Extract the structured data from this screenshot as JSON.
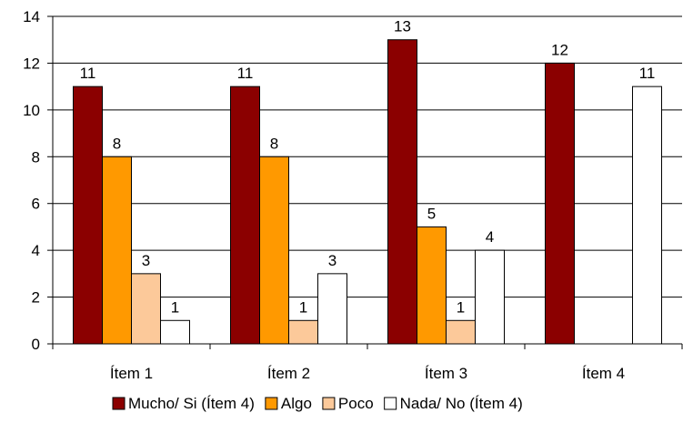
{
  "chart_data": {
    "type": "bar",
    "categories": [
      "Ítem 1",
      "Ítem 2",
      "Ítem 3",
      "Ítem 4"
    ],
    "series": [
      {
        "name": "Mucho/ Si (Ítem 4)",
        "values": [
          11,
          11,
          13,
          12
        ],
        "color": "#8b0000"
      },
      {
        "name": "Algo",
        "values": [
          8,
          8,
          5,
          null
        ],
        "color": "#ff9900"
      },
      {
        "name": "Poco",
        "values": [
          3,
          1,
          1,
          null
        ],
        "color": "#fcc99a"
      },
      {
        "name": "Nada/ No (Ítem 4)",
        "values": [
          1,
          3,
          4,
          11
        ],
        "color": "#ffffff"
      }
    ],
    "ylim": [
      0,
      14
    ],
    "yticks": [
      0,
      2,
      4,
      6,
      8,
      10,
      12,
      14
    ],
    "grid": true,
    "legend": "bottom",
    "title": "",
    "xlabel": "",
    "ylabel": ""
  }
}
